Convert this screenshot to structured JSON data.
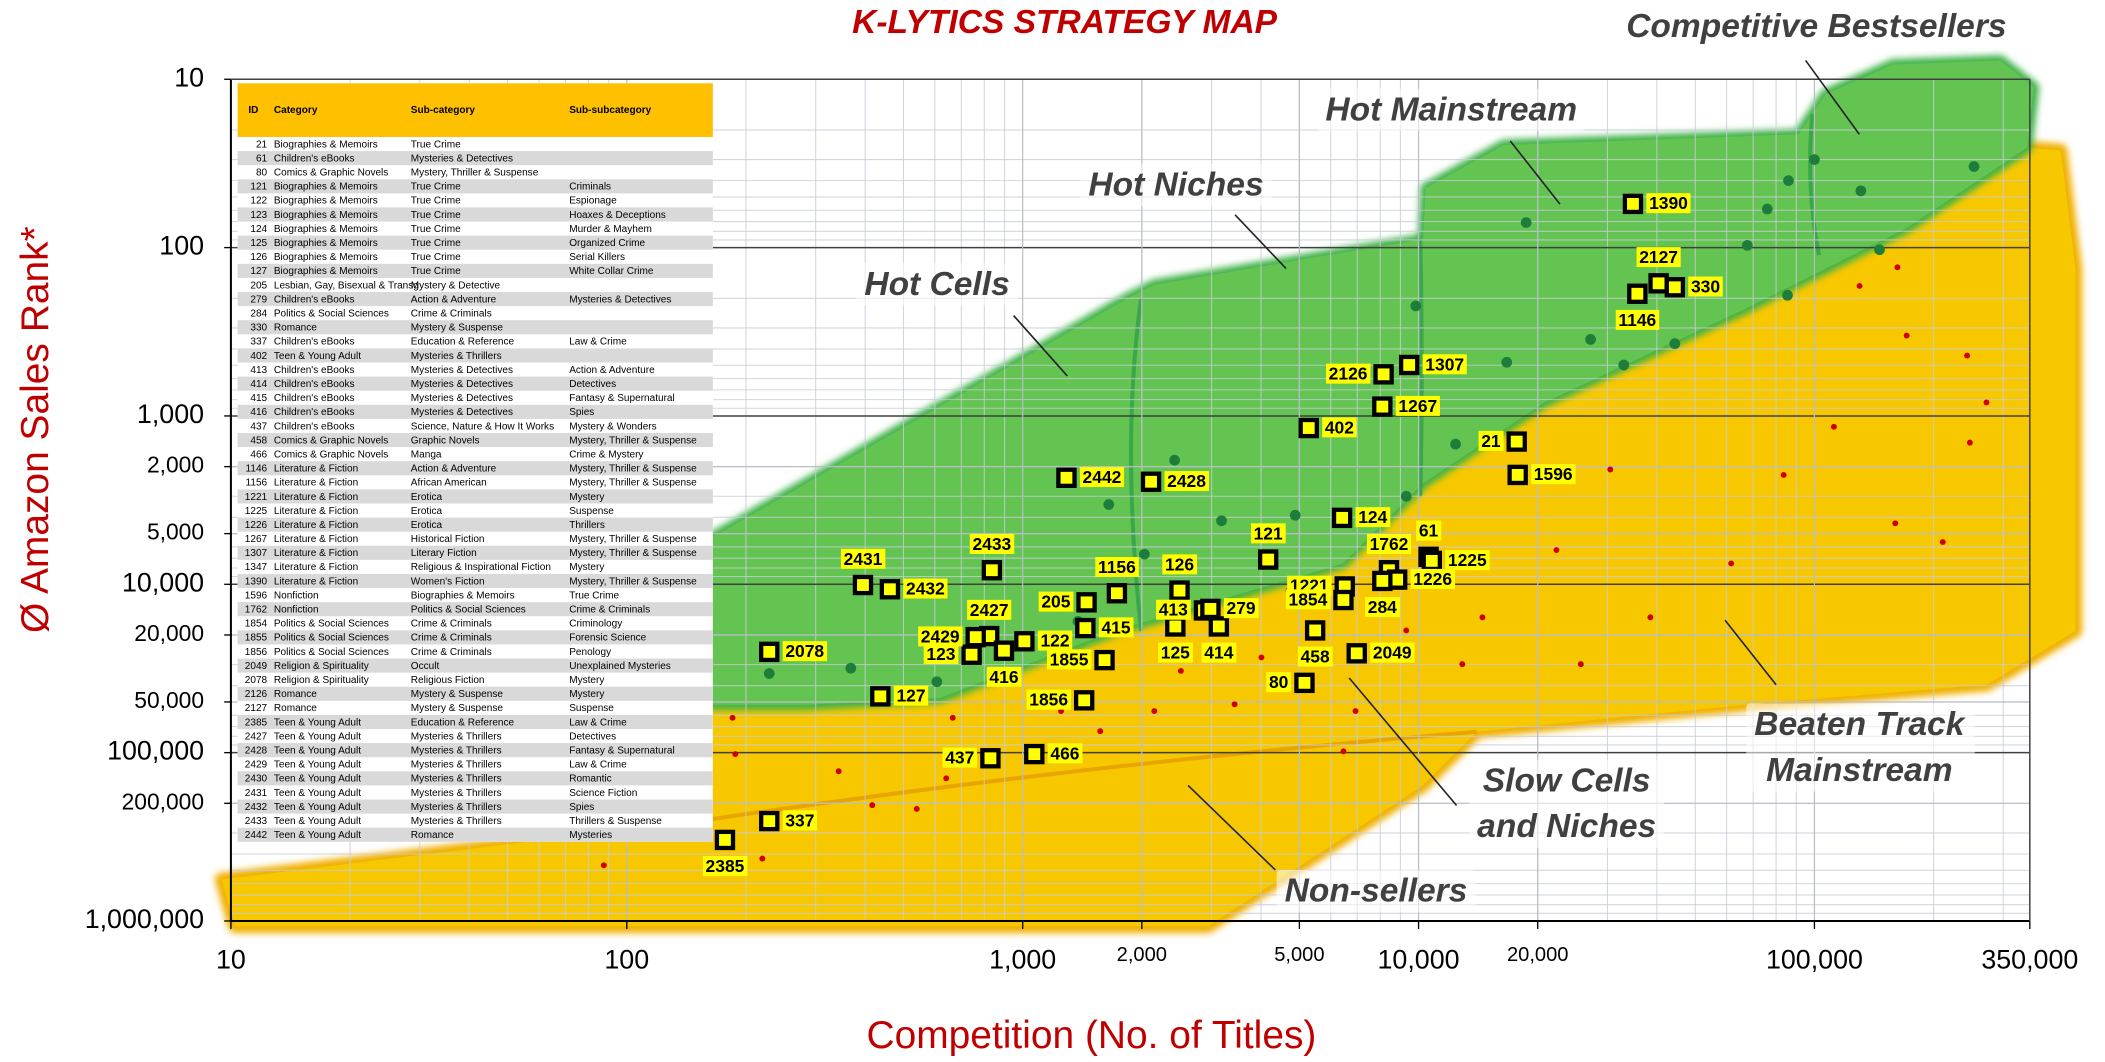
{
  "chart_data": {
    "type": "scatter",
    "title": "K-LYTICS STRATEGY MAP",
    "xlabel": "Competition (No. of Titles)",
    "ylabel": "Ø Amazon Sales Rank*",
    "xlim": [
      10,
      350000
    ],
    "ylim": [
      10,
      1000000
    ],
    "xscale": "log",
    "yscale": "log",
    "y_inverted": true,
    "grid": true,
    "xticks": [
      10,
      100,
      {
        "value": 1000,
        "label": "1,000"
      },
      {
        "value": 2000,
        "label": "2,000"
      },
      {
        "value": 5000,
        "label": "5,000"
      },
      {
        "value": 10000,
        "label": "10,000"
      },
      {
        "value": 20000,
        "label": "20,000"
      },
      {
        "value": 100000,
        "label": "100,000"
      },
      {
        "value": 350000,
        "label": "350,000"
      }
    ],
    "yticks": [
      10,
      100,
      {
        "value": 1000,
        "label": "1,000"
      },
      {
        "value": 2000,
        "label": "2,000"
      },
      {
        "value": 5000,
        "label": "5,000"
      },
      {
        "value": 10000,
        "label": "10,000"
      },
      {
        "value": 20000,
        "label": "20,000"
      },
      {
        "value": 50000,
        "label": "50,000"
      },
      {
        "value": 100000,
        "label": "100,000"
      },
      {
        "value": 200000,
        "label": "200,000"
      },
      {
        "value": 1000000,
        "label": "1,000,000"
      }
    ],
    "annotations": [
      [
        "Hot Cells"
      ],
      [
        "Hot Niches"
      ],
      [
        "Hot Mainstream"
      ],
      [
        "Competitive Bestsellers"
      ],
      [
        "Beaten Track",
        "Mainstream"
      ],
      [
        "Slow Cells",
        "and Niches"
      ],
      [
        "Non-sellers"
      ]
    ],
    "points": {
      "color": "#ffff00",
      "labels": [
        "1390",
        "2127",
        "330",
        "1146",
        "1307",
        "2126",
        "1267",
        "402",
        "21",
        "1596",
        "124",
        "2442",
        "2428",
        "121",
        "1762",
        "61",
        "1225",
        "1221",
        "1226",
        "284",
        "1854",
        "2049",
        "458",
        "80",
        "126",
        "413",
        "279",
        "125",
        "414",
        "1156",
        "205",
        "415",
        "1855",
        "1856",
        "122",
        "2427",
        "2429",
        "123",
        "416",
        "2433",
        "2431",
        "2432",
        "2078",
        "127",
        "437",
        "466",
        "337",
        "2385"
      ],
      "x": [
        34800,
        40400,
        44400,
        35700,
        9470,
        8160,
        8100,
        5280,
        17700,
        17800,
        6410,
        1290,
        2110,
        4170,
        8420,
        10600,
        10800,
        6510,
        8830,
        8100,
        6460,
        6980,
        5480,
        5150,
        2490,
        2870,
        2980,
        2430,
        3130,
        1730,
        1450,
        1440,
        1610,
        1430,
        1010,
        823,
        761,
        743,
        897,
        836,
        395,
        462,
        229,
        437,
        829,
        1070,
        229,
        177
      ],
      "values": [
        55,
        163,
        172,
        188,
        498,
        566,
        880,
        1180,
        1420,
        2240,
        4030,
        2330,
        2460,
        7130,
        8250,
        6870,
        7260,
        10300,
        9380,
        9550,
        12400,
        25700,
        18800,
        38500,
        10900,
        14300,
        14000,
        17800,
        17800,
        11300,
        12800,
        18200,
        28200,
        48900,
        21800,
        20300,
        20600,
        26200,
        24800,
        8250,
        10100,
        10700,
        25200,
        46300,
        108000,
        102000,
        255000,
        330000
      ]
    },
    "series": [
      {
        "color": "#1e7d3a",
        "x": [
          100000,
          131000,
          253000,
          86000,
          76000,
          67700,
          146000,
          85500,
          44400,
          27200,
          18700,
          16700,
          12400,
          9840,
          3180,
          4880,
          1650,
          2420,
          2030,
          229,
          368,
          607,
          1380,
          9310,
          33000
        ],
        "values": [
          30,
          46,
          33,
          40,
          59,
          97,
          103,
          192,
          372,
          351,
          71,
          480,
          1470,
          222,
          4190,
          3890,
          3360,
          1830,
          6620,
          33900,
          31500,
          37900,
          16600,
          3000,
          498
        ]
      },
      {
        "color": "#d00000",
        "x": [
          130000,
          162000,
          243000,
          272000,
          247000,
          171000,
          112000,
          83600,
          160000,
          61600,
          38500,
          25700,
          30500,
          22300,
          14500,
          12900,
          9310,
          4690,
          4010,
          3430,
          2510,
          2150,
          1570,
          1250,
          666,
          641,
          417,
          343,
          540,
          188,
          185,
          87.5,
          220,
          6460,
          6930,
          211000
        ],
        "values": [
          169,
          131,
          438,
          832,
          1440,
          333,
          1160,
          2240,
          4340,
          7520,
          15700,
          29800,
          2080,
          6260,
          15700,
          29800,
          18800,
          10900,
          27200,
          51600,
          32700,
          56600,
          74600,
          56600,
          62100,
          142000,
          205000,
          129000,
          216000,
          102000,
          62100,
          467000,
          426000,
          98200,
          56600,
          5610
        ]
      }
    ]
  },
  "table": {
    "columns": [
      "ID",
      "Category",
      "Sub-category",
      "Sub-subcategory"
    ],
    "rows": [
      [
        21,
        "Biographies & Memoirs",
        "True Crime"
      ],
      [
        61,
        "Children's eBooks",
        "Mysteries & Detectives"
      ],
      [
        80,
        "Comics & Graphic Novels",
        "Mystery, Thriller & Suspense"
      ],
      [
        121,
        "Biographies & Memoirs",
        "True Crime",
        "Criminals"
      ],
      [
        122,
        "Biographies & Memoirs",
        "True Crime",
        "Espionage"
      ],
      [
        123,
        "Biographies & Memoirs",
        "True Crime",
        "Hoaxes & Deceptions"
      ],
      [
        124,
        "Biographies & Memoirs",
        "True Crime",
        "Murder & Mayhem"
      ],
      [
        125,
        "Biographies & Memoirs",
        "True Crime",
        "Organized Crime"
      ],
      [
        126,
        "Biographies & Memoirs",
        "True Crime",
        "Serial Killers"
      ],
      [
        127,
        "Biographies & Memoirs",
        "True Crime",
        "White Collar Crime"
      ],
      [
        205,
        "Lesbian, Gay, Bisexual & Transg",
        "Mystery & Detective"
      ],
      [
        279,
        "Children's eBooks",
        "Action & Adventure",
        "Mysteries & Detectives"
      ],
      [
        284,
        "Politics & Social Sciences",
        "Crime & Criminals"
      ],
      [
        330,
        "Romance",
        "Mystery & Suspense"
      ],
      [
        337,
        "Children's eBooks",
        "Education & Reference",
        "Law & Crime"
      ],
      [
        402,
        "Teen & Young Adult",
        "Mysteries & Thrillers"
      ],
      [
        413,
        "Children's eBooks",
        "Mysteries & Detectives",
        "Action & Adventure"
      ],
      [
        414,
        "Children's eBooks",
        "Mysteries & Detectives",
        "Detectives"
      ],
      [
        415,
        "Children's eBooks",
        "Mysteries & Detectives",
        "Fantasy & Supernatural"
      ],
      [
        416,
        "Children's eBooks",
        "Mysteries & Detectives",
        "Spies"
      ],
      [
        437,
        "Children's eBooks",
        "Science, Nature & How It Works",
        "Mystery & Wonders"
      ],
      [
        458,
        "Comics & Graphic Novels",
        "Graphic Novels",
        "Mystery, Thriller & Suspense"
      ],
      [
        466,
        "Comics & Graphic Novels",
        "Manga",
        "Crime & Mystery"
      ],
      [
        1146,
        "Literature & Fiction",
        "Action & Adventure",
        "Mystery, Thriller & Suspense"
      ],
      [
        1156,
        "Literature & Fiction",
        "African American",
        "Mystery, Thriller & Suspense"
      ],
      [
        1221,
        "Literature & Fiction",
        "Erotica",
        "Mystery"
      ],
      [
        1225,
        "Literature & Fiction",
        "Erotica",
        "Suspense"
      ],
      [
        1226,
        "Literature & Fiction",
        "Erotica",
        "Thrillers"
      ],
      [
        1267,
        "Literature & Fiction",
        "Historical Fiction",
        "Mystery, Thriller & Suspense"
      ],
      [
        1307,
        "Literature & Fiction",
        "Literary Fiction",
        "Mystery, Thriller & Suspense"
      ],
      [
        1347,
        "Literature & Fiction",
        "Religious & Inspirational Fiction",
        "Mystery"
      ],
      [
        1390,
        "Literature & Fiction",
        "Women's Fiction",
        "Mystery, Thriller & Suspense"
      ],
      [
        1596,
        "Nonfiction",
        "Biographies & Memoirs",
        "True Crime"
      ],
      [
        1762,
        "Nonfiction",
        "Politics & Social Sciences",
        "Crime & Criminals"
      ],
      [
        1854,
        "Politics & Social Sciences",
        "Crime & Criminals",
        "Criminology"
      ],
      [
        1855,
        "Politics & Social Sciences",
        "Crime & Criminals",
        "Forensic Science"
      ],
      [
        1856,
        "Politics & Social Sciences",
        "Crime & Criminals",
        "Penology"
      ],
      [
        2049,
        "Religion & Spirituality",
        "Occult",
        "Unexplained Mysteries"
      ],
      [
        2078,
        "Religion & Spirituality",
        "Religious Fiction",
        "Mystery"
      ],
      [
        2126,
        "Romance",
        "Mystery & Suspense",
        "Mystery"
      ],
      [
        2127,
        "Romance",
        "Mystery & Suspense",
        "Suspense"
      ],
      [
        2385,
        "Teen & Young Adult",
        "Education & Reference",
        "Law & Crime"
      ],
      [
        2427,
        "Teen & Young Adult",
        "Mysteries & Thrillers",
        "Detectives"
      ],
      [
        2428,
        "Teen & Young Adult",
        "Mysteries & Thrillers",
        "Fantasy & Supernatural"
      ],
      [
        2429,
        "Teen & Young Adult",
        "Mysteries & Thrillers",
        "Law & Crime"
      ],
      [
        2430,
        "Teen & Young Adult",
        "Mysteries & Thrillers",
        "Romantic"
      ],
      [
        2431,
        "Teen & Young Adult",
        "Mysteries & Thrillers",
        "Science Fiction"
      ],
      [
        2432,
        "Teen & Young Adult",
        "Mysteries & Thrillers",
        "Spies"
      ],
      [
        2433,
        "Teen & Young Adult",
        "Mysteries & Thrillers",
        "Thrillers & Suspense"
      ],
      [
        2442,
        "Teen & Young Adult",
        "Romance",
        "Mysteries"
      ]
    ]
  }
}
